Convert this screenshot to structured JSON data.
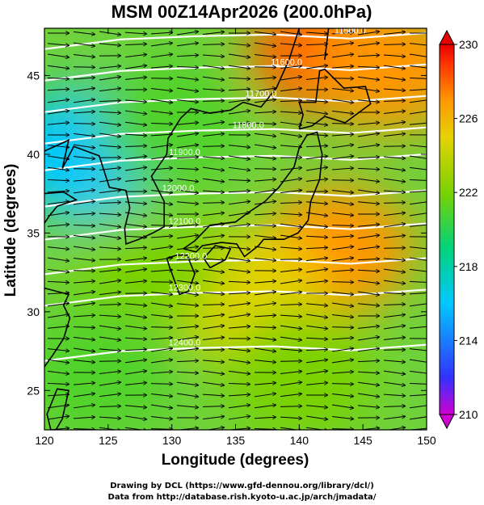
{
  "chart_data": {
    "type": "heatmap",
    "title": "MSM 00Z14Apr2026 (200.0hPa)",
    "xlabel": "Longitude (degrees)",
    "ylabel": "Latitude  (degrees)",
    "xlim": [
      120,
      150
    ],
    "ylim": [
      22.5,
      48
    ],
    "xticks": [
      "120",
      "125",
      "130",
      "135",
      "140",
      "145",
      "150"
    ],
    "yticks": [
      "25",
      "30",
      "35",
      "40",
      "45"
    ],
    "colorbar": {
      "range": [
        210,
        230
      ],
      "ticks": [
        "230",
        "226",
        "222",
        "218",
        "214",
        "210"
      ],
      "colors": [
        "#d200d2",
        "#3232ff",
        "#00c8ff",
        "#00d27a",
        "#7ad200",
        "#e6d200",
        "#ff9600",
        "#ff3200",
        "#e60000"
      ]
    },
    "temperature_field": [
      {
        "lon": 123,
        "lat": 40,
        "value": 216,
        "note": "cold core west"
      },
      {
        "lon": 130,
        "lat": 42,
        "value": 221
      },
      {
        "lon": 142,
        "lat": 46.5,
        "value": 228
      },
      {
        "lon": 147,
        "lat": 45.5,
        "value": 227
      },
      {
        "lon": 143,
        "lat": 34,
        "value": 227
      },
      {
        "lon": 136,
        "lat": 31,
        "value": 225
      },
      {
        "lon": 128,
        "lat": 33,
        "value": 222
      },
      {
        "lon": 124,
        "lat": 26,
        "value": 221
      },
      {
        "lon": 140,
        "lat": 26,
        "value": 222
      }
    ],
    "contours": [
      {
        "label": "11500.0",
        "lon": 144,
        "lat": 47.5
      },
      {
        "label": "11600.0",
        "lon": 139,
        "lat": 45.5
      },
      {
        "label": "11700.0",
        "lon": 137,
        "lat": 43.5
      },
      {
        "label": "11800.0",
        "lon": 136,
        "lat": 41.5
      },
      {
        "label": "11900.0",
        "lon": 131,
        "lat": 39.8
      },
      {
        "label": "12000.0",
        "lon": 130.5,
        "lat": 37.5
      },
      {
        "label": "12100.0",
        "lon": 131,
        "lat": 35.4
      },
      {
        "label": "12200.0",
        "lon": 131.5,
        "lat": 33.2
      },
      {
        "label": "12300.0",
        "lon": 131,
        "lat": 31.2
      },
      {
        "label": "12400.0",
        "lon": 131,
        "lat": 27.7
      }
    ],
    "wind": "westerly streamlines"
  },
  "credits": {
    "line1": "Drawing by DCL (https://www.gfd-dennou.org/library/dcl/)",
    "line2": "Data from http://database.rish.kyoto-u.ac.jp/arch/jmadata/"
  }
}
